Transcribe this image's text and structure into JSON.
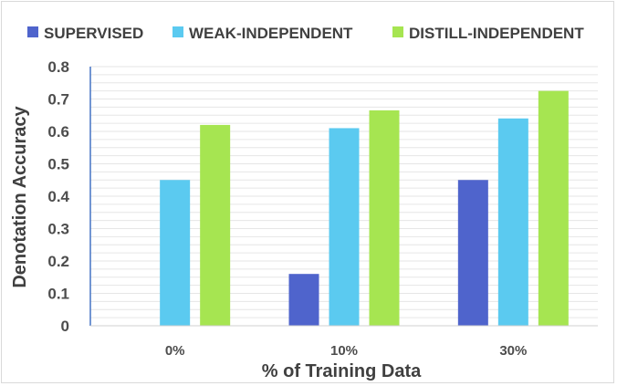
{
  "chart_data": {
    "type": "bar",
    "title": "",
    "xlabel": "% of Training Data",
    "ylabel": "Denotation Accuracy",
    "categories": [
      "0%",
      "10%",
      "30%"
    ],
    "ylim": [
      0,
      0.8
    ],
    "yticks": [
      "0",
      "0.1",
      "0.2",
      "0.3",
      "0.4",
      "0.5",
      "0.6",
      "0.7",
      "0.8"
    ],
    "minor_grid_step": 0.025,
    "legend_position": "top",
    "grid": true,
    "series": [
      {
        "name": "SUPERVISED",
        "color": "#4f64cc",
        "values": [
          null,
          0.16,
          0.45
        ]
      },
      {
        "name": "WEAK-INDEPENDENT",
        "color": "#5bcaf0",
        "values": [
          0.45,
          0.61,
          0.64
        ]
      },
      {
        "name": "DISTILL-INDEPENDENT",
        "color": "#a6e551",
        "values": [
          0.62,
          0.665,
          0.725
        ]
      }
    ]
  }
}
